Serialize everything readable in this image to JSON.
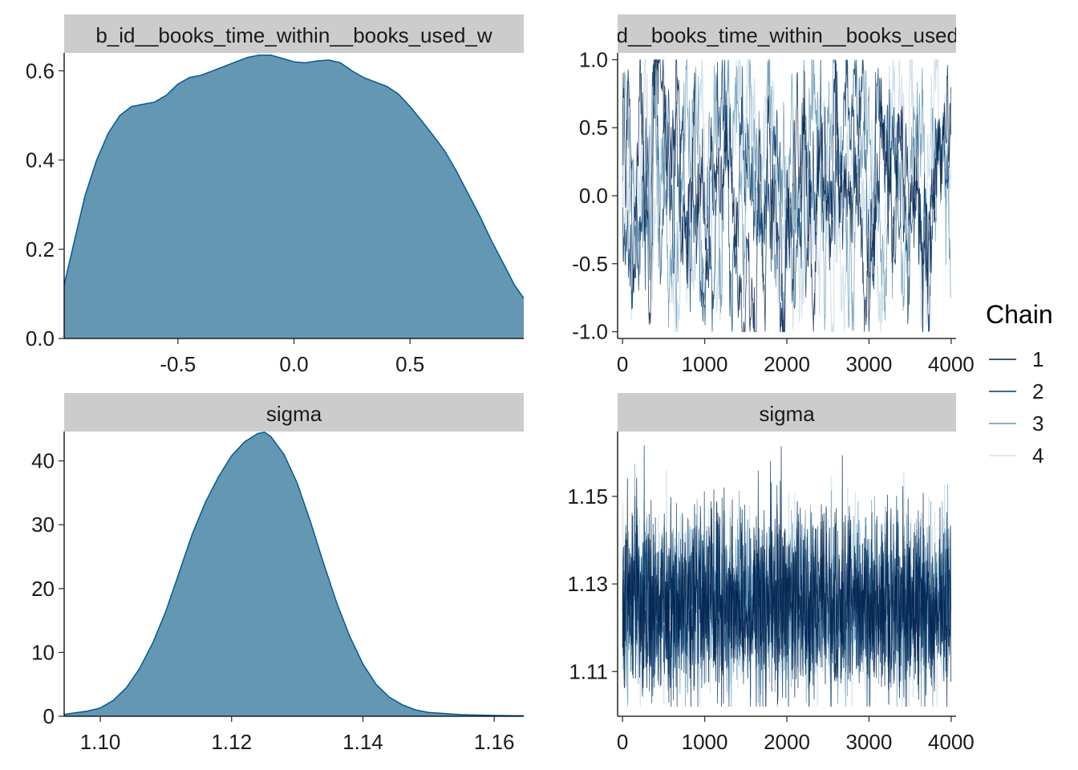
{
  "colors": {
    "density_fill": "#6497b1",
    "density_line": "#005b96",
    "strip_bg": "#cccccc",
    "chains": [
      "#011f4b",
      "#03396c",
      "#6497b1",
      "#d1e1ec"
    ]
  },
  "legend": {
    "title": "Chain",
    "labels": [
      "1",
      "2",
      "3",
      "4"
    ]
  },
  "chart_data": [
    {
      "type": "area",
      "panel": "density",
      "strip": "b_id__books_time_within__books_used_w",
      "xlim": [
        -0.99,
        0.99
      ],
      "ylim": [
        0,
        0.64
      ],
      "xticks": [
        -0.5,
        0.0,
        0.5
      ],
      "xtick_labels": [
        "-0.5",
        "0.0",
        "0.5"
      ],
      "yticks": [
        0.0,
        0.2,
        0.4,
        0.6
      ],
      "ytick_labels": [
        "0.0",
        "0.2",
        "0.4",
        "0.6"
      ],
      "x": [
        -0.99,
        -0.95,
        -0.9,
        -0.85,
        -0.8,
        -0.75,
        -0.7,
        -0.65,
        -0.6,
        -0.55,
        -0.5,
        -0.45,
        -0.4,
        -0.35,
        -0.3,
        -0.25,
        -0.2,
        -0.15,
        -0.1,
        -0.05,
        0.0,
        0.05,
        0.1,
        0.15,
        0.2,
        0.25,
        0.3,
        0.35,
        0.4,
        0.45,
        0.5,
        0.55,
        0.6,
        0.65,
        0.7,
        0.75,
        0.8,
        0.85,
        0.9,
        0.95,
        0.99
      ],
      "y": [
        0.12,
        0.21,
        0.32,
        0.4,
        0.46,
        0.5,
        0.52,
        0.525,
        0.53,
        0.545,
        0.57,
        0.585,
        0.59,
        0.6,
        0.61,
        0.62,
        0.63,
        0.635,
        0.635,
        0.628,
        0.62,
        0.618,
        0.622,
        0.624,
        0.618,
        0.6,
        0.585,
        0.575,
        0.565,
        0.548,
        0.52,
        0.488,
        0.455,
        0.42,
        0.375,
        0.325,
        0.275,
        0.22,
        0.17,
        0.12,
        0.09
      ]
    },
    {
      "type": "line",
      "panel": "trace",
      "strip": "b_id__books_time_within__books_used_w",
      "xlim": [
        -60,
        4060
      ],
      "ylim": [
        -1.05,
        1.05
      ],
      "xticks": [
        0,
        1000,
        2000,
        3000,
        4000
      ],
      "xtick_labels": [
        "0",
        "1000",
        "2000",
        "3000",
        "4000"
      ],
      "yticks": [
        -1.0,
        -0.5,
        0.0,
        0.5,
        1.0
      ],
      "ytick_labels": [
        "-1.0",
        "-0.5",
        "0.0",
        "0.5",
        "1.0"
      ],
      "iterations": 4000,
      "series_center": 0.0,
      "series_spread": 0.58,
      "series_bounds": [
        -1.0,
        1.0
      ],
      "series": [
        {
          "name": "1"
        },
        {
          "name": "2"
        },
        {
          "name": "3"
        },
        {
          "name": "4"
        }
      ]
    },
    {
      "type": "area",
      "panel": "density",
      "strip": "sigma",
      "xlim": [
        1.0945,
        1.1645
      ],
      "ylim": [
        0,
        44.6
      ],
      "xticks": [
        1.1,
        1.12,
        1.14,
        1.16
      ],
      "xtick_labels": [
        "1.10",
        "1.12",
        "1.14",
        "1.16"
      ],
      "yticks": [
        0,
        10,
        20,
        30,
        40
      ],
      "ytick_labels": [
        "0",
        "10",
        "20",
        "30",
        "40"
      ],
      "x": [
        1.0945,
        1.098,
        1.1,
        1.102,
        1.104,
        1.106,
        1.108,
        1.11,
        1.112,
        1.114,
        1.116,
        1.118,
        1.12,
        1.122,
        1.124,
        1.125,
        1.126,
        1.128,
        1.13,
        1.132,
        1.134,
        1.136,
        1.138,
        1.14,
        1.142,
        1.144,
        1.146,
        1.148,
        1.15,
        1.155,
        1.16,
        1.1645
      ],
      "y": [
        0.3,
        0.8,
        1.3,
        2.5,
        4.5,
        7.5,
        11.5,
        16.5,
        22.5,
        28.5,
        33.5,
        37.5,
        40.8,
        43.0,
        44.3,
        44.5,
        43.8,
        41.0,
        36.5,
        30.5,
        24.0,
        17.8,
        12.5,
        8.2,
        5.0,
        3.0,
        1.8,
        1.0,
        0.6,
        0.25,
        0.12,
        0.08
      ]
    },
    {
      "type": "line",
      "panel": "trace",
      "strip": "sigma",
      "xlim": [
        -60,
        4060
      ],
      "ylim": [
        1.0998,
        1.1648
      ],
      "xticks": [
        0,
        1000,
        2000,
        3000,
        4000
      ],
      "xtick_labels": [
        "0",
        "1000",
        "2000",
        "3000",
        "4000"
      ],
      "yticks": [
        1.11,
        1.13,
        1.15
      ],
      "ytick_labels": [
        "1.11",
        "1.13",
        "1.15"
      ],
      "iterations": 4000,
      "series_center": 1.1255,
      "series_spread": 0.0105,
      "series_bounds": [
        1.102,
        1.1635
      ],
      "series": [
        {
          "name": "1"
        },
        {
          "name": "2"
        },
        {
          "name": "3"
        },
        {
          "name": "4"
        }
      ]
    }
  ]
}
